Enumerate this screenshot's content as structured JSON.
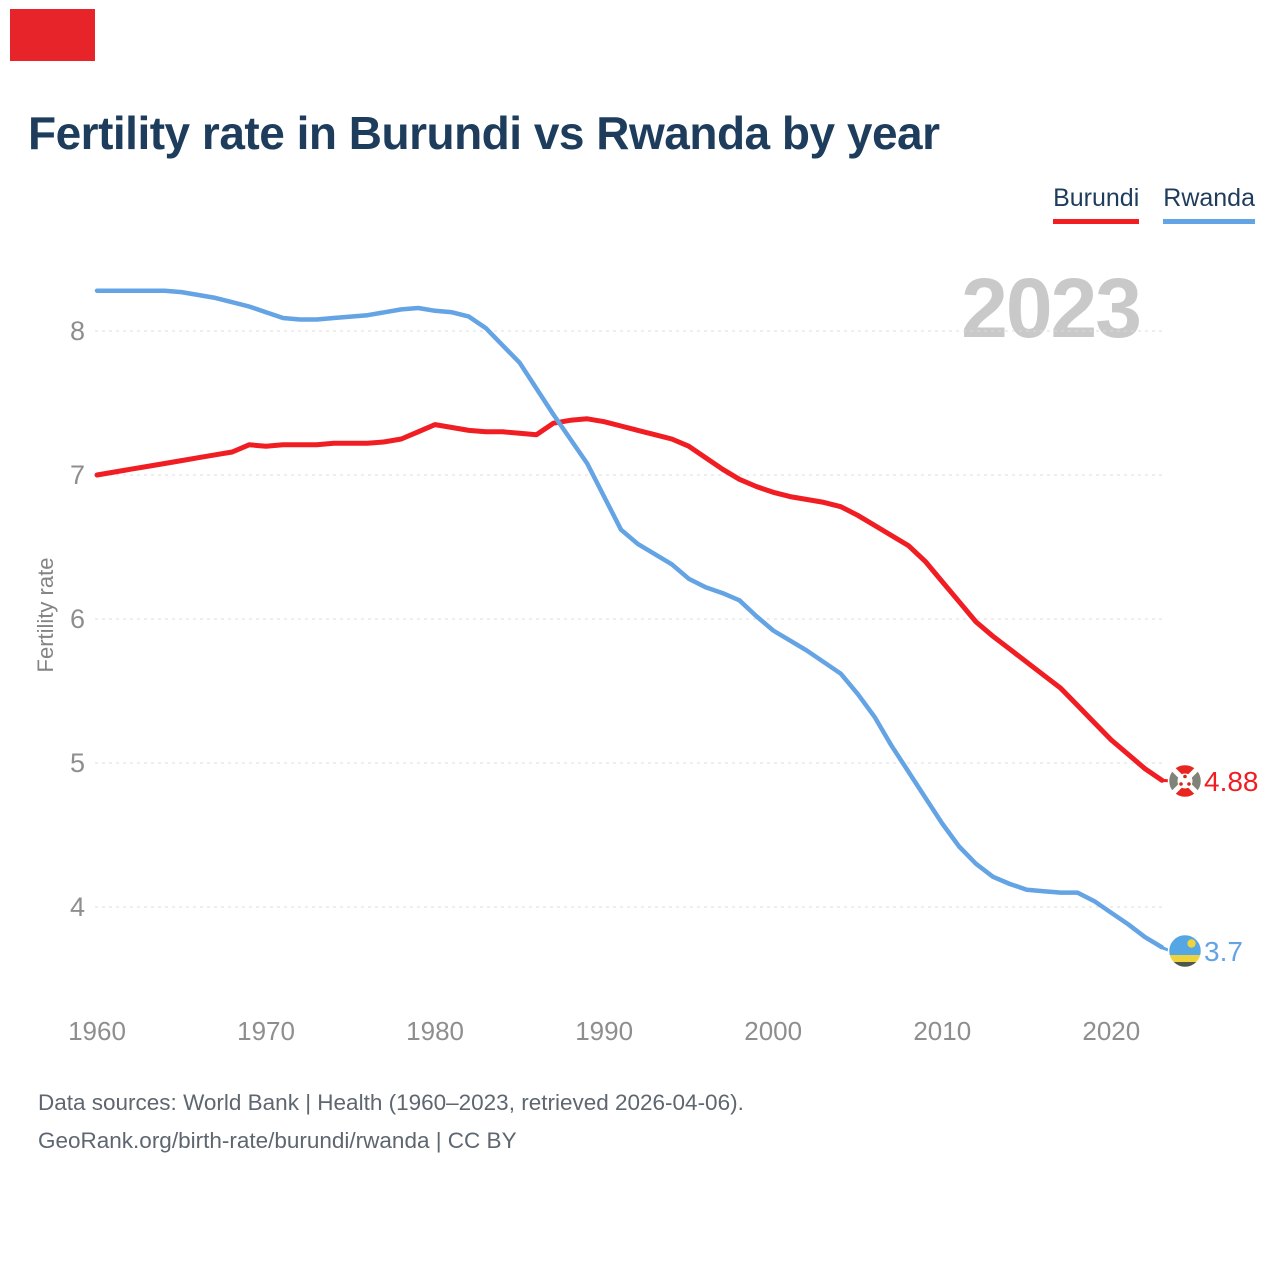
{
  "header": {
    "title": "Fertility rate in Burundi vs Rwanda by year"
  },
  "legend": [
    {
      "label": "Burundi",
      "color": "#f01e23"
    },
    {
      "label": "Rwanda",
      "color": "#64a3e4"
    }
  ],
  "watermark": "2023",
  "annotations": {
    "burundi_end_label": "4.88",
    "rwanda_end_label": "3.7"
  },
  "footer": {
    "line1": "Data sources: World Bank | Health (1960–2023, retrieved 2026-04-06).",
    "line2": "GeoRank.org/birth-rate/burundi/rwanda | CC BY"
  },
  "chart_data": {
    "type": "line",
    "title": "Fertility rate in Burundi vs Rwanda by year",
    "xlabel": "",
    "ylabel": "Fertility rate",
    "x_start": 1960,
    "x_end": 2023,
    "xticks": [
      1960,
      1970,
      1980,
      1990,
      2000,
      2010,
      2020
    ],
    "yticks": [
      8,
      7,
      6,
      5,
      4
    ],
    "ylim": [
      3.4,
      8.6
    ],
    "grid": "horizontal-dashed",
    "legend_position": "top-right",
    "series": [
      {
        "name": "Burundi",
        "color": "#f01e23",
        "end_label": "4.88",
        "final_value": 4.88,
        "values": [
          7.0,
          7.02,
          7.04,
          7.06,
          7.08,
          7.1,
          7.12,
          7.14,
          7.16,
          7.21,
          7.2,
          7.21,
          7.21,
          7.21,
          7.22,
          7.22,
          7.22,
          7.23,
          7.25,
          7.3,
          7.35,
          7.33,
          7.31,
          7.3,
          7.3,
          7.29,
          7.28,
          7.36,
          7.38,
          7.39,
          7.37,
          7.34,
          7.31,
          7.28,
          7.25,
          7.2,
          7.12,
          7.04,
          6.97,
          6.92,
          6.88,
          6.85,
          6.83,
          6.81,
          6.78,
          6.72,
          6.65,
          6.58,
          6.51,
          6.4,
          6.26,
          6.12,
          5.98,
          5.88,
          5.79,
          5.7,
          5.61,
          5.52,
          5.4,
          5.28,
          5.16,
          5.06,
          4.96,
          4.88
        ]
      },
      {
        "name": "Rwanda",
        "color": "#64a3e4",
        "end_label": "3.7",
        "final_value": 3.7,
        "values": [
          8.28,
          8.28,
          8.28,
          8.28,
          8.28,
          8.27,
          8.25,
          8.23,
          8.2,
          8.17,
          8.13,
          8.09,
          8.08,
          8.08,
          8.09,
          8.1,
          8.11,
          8.13,
          8.15,
          8.16,
          8.14,
          8.13,
          8.1,
          8.02,
          7.9,
          7.78,
          7.6,
          7.42,
          7.25,
          7.08,
          6.85,
          6.62,
          6.52,
          6.45,
          6.38,
          6.28,
          6.22,
          6.18,
          6.13,
          6.02,
          5.92,
          5.85,
          5.78,
          5.7,
          5.62,
          5.48,
          5.32,
          5.12,
          4.94,
          4.76,
          4.58,
          4.42,
          4.3,
          4.21,
          4.16,
          4.12,
          4.11,
          4.1,
          4.1,
          4.04,
          3.96,
          3.88,
          3.79,
          3.72
        ]
      }
    ]
  }
}
